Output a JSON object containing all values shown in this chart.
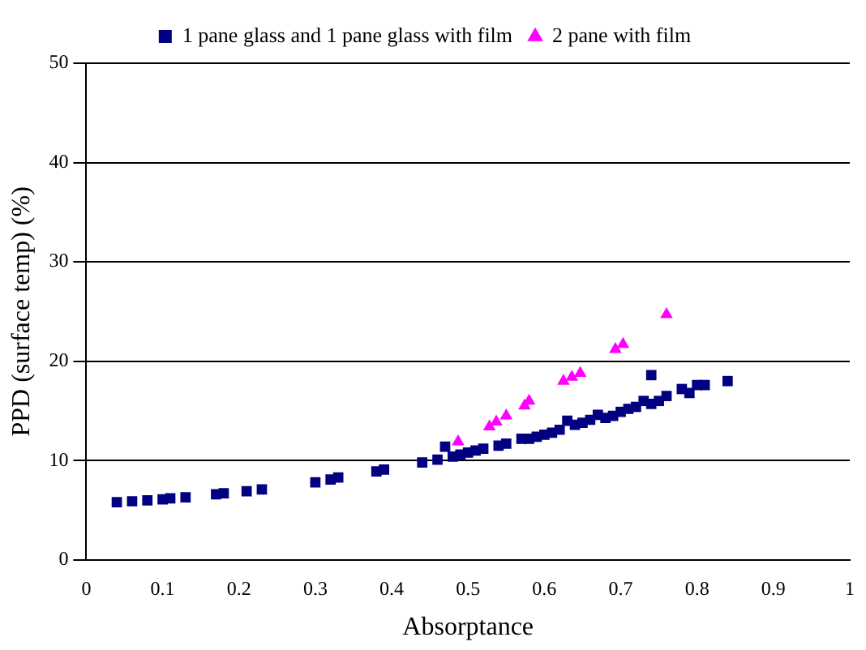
{
  "chart_data": {
    "type": "scatter",
    "xlabel": "Absorptance",
    "ylabel": "PPD (surface temp) (%)",
    "xlim": [
      0,
      1
    ],
    "xticks": [
      0,
      0.1,
      0.2,
      0.3,
      0.4,
      0.5,
      0.6,
      0.7,
      0.8,
      0.9,
      1
    ],
    "ylim": [
      0,
      50
    ],
    "yticks": [
      0,
      10,
      20,
      30,
      40,
      50
    ],
    "grid": "y",
    "legend": "top",
    "series": [
      {
        "name": "1 pane glass and 1 pane glass with film",
        "color": "#000080",
        "marker": "square",
        "x": [
          0.04,
          0.06,
          0.08,
          0.1,
          0.11,
          0.13,
          0.17,
          0.18,
          0.21,
          0.23,
          0.3,
          0.32,
          0.33,
          0.38,
          0.39,
          0.44,
          0.46,
          0.47,
          0.48,
          0.49,
          0.5,
          0.51,
          0.52,
          0.54,
          0.55,
          0.57,
          0.58,
          0.59,
          0.6,
          0.61,
          0.62,
          0.63,
          0.64,
          0.65,
          0.66,
          0.67,
          0.68,
          0.69,
          0.7,
          0.71,
          0.72,
          0.73,
          0.74,
          0.74,
          0.75,
          0.76,
          0.78,
          0.79,
          0.8,
          0.81,
          0.84
        ],
        "values": [
          5.8,
          5.9,
          6.0,
          6.1,
          6.2,
          6.3,
          6.6,
          6.7,
          6.9,
          7.1,
          7.8,
          8.1,
          8.3,
          8.9,
          9.1,
          9.8,
          10.1,
          11.4,
          10.4,
          10.6,
          10.8,
          11.0,
          11.2,
          11.5,
          11.7,
          12.2,
          12.2,
          12.4,
          12.6,
          12.8,
          13.1,
          14.0,
          13.6,
          13.8,
          14.1,
          14.6,
          14.3,
          14.5,
          14.9,
          15.2,
          15.4,
          16.0,
          15.7,
          18.6,
          16.0,
          16.5,
          17.2,
          16.8,
          17.6,
          17.6,
          18.0
        ]
      },
      {
        "name": "2 pane with film",
        "color": "#ff00ff",
        "marker": "triangle",
        "x": [
          0.487,
          0.528,
          0.537,
          0.55,
          0.574,
          0.58,
          0.625,
          0.636,
          0.647,
          0.693,
          0.703,
          0.76
        ],
        "values": [
          11.9,
          13.4,
          13.9,
          14.5,
          15.5,
          16.0,
          18.0,
          18.4,
          18.8,
          21.2,
          21.7,
          24.7
        ]
      }
    ]
  }
}
